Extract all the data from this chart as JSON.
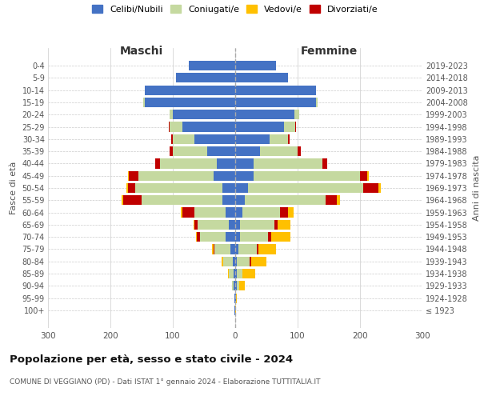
{
  "age_groups": [
    "100+",
    "95-99",
    "90-94",
    "85-89",
    "80-84",
    "75-79",
    "70-74",
    "65-69",
    "60-64",
    "55-59",
    "50-54",
    "45-49",
    "40-44",
    "35-39",
    "30-34",
    "25-29",
    "20-24",
    "15-19",
    "10-14",
    "5-9",
    "0-4"
  ],
  "birth_years": [
    "≤ 1923",
    "1924-1928",
    "1929-1933",
    "1934-1938",
    "1939-1943",
    "1944-1948",
    "1949-1953",
    "1954-1958",
    "1959-1963",
    "1964-1968",
    "1969-1973",
    "1974-1978",
    "1979-1983",
    "1984-1988",
    "1989-1993",
    "1994-1998",
    "1999-2003",
    "2004-2008",
    "2009-2013",
    "2014-2018",
    "2019-2023"
  ],
  "males": {
    "celibi": [
      1,
      1,
      2,
      2,
      4,
      8,
      16,
      10,
      15,
      20,
      20,
      35,
      30,
      45,
      65,
      85,
      100,
      145,
      145,
      95,
      75
    ],
    "coniugati": [
      0,
      0,
      3,
      8,
      15,
      25,
      40,
      50,
      50,
      130,
      140,
      120,
      90,
      55,
      35,
      20,
      5,
      2,
      0,
      0,
      0
    ],
    "vedovi": [
      0,
      0,
      0,
      2,
      3,
      2,
      2,
      2,
      2,
      2,
      2,
      2,
      0,
      0,
      0,
      0,
      0,
      0,
      0,
      0,
      0
    ],
    "divorziati": [
      0,
      0,
      0,
      0,
      0,
      2,
      5,
      5,
      20,
      30,
      12,
      15,
      8,
      5,
      2,
      2,
      0,
      0,
      0,
      0,
      0
    ]
  },
  "females": {
    "nubili": [
      0,
      1,
      2,
      2,
      3,
      5,
      8,
      8,
      12,
      15,
      20,
      30,
      30,
      40,
      55,
      78,
      95,
      130,
      130,
      85,
      65
    ],
    "coniugate": [
      0,
      0,
      5,
      10,
      20,
      30,
      45,
      55,
      60,
      130,
      185,
      170,
      110,
      60,
      30,
      18,
      8,
      2,
      0,
      0,
      0
    ],
    "vedove": [
      1,
      2,
      8,
      20,
      25,
      28,
      30,
      20,
      10,
      5,
      3,
      2,
      0,
      0,
      0,
      0,
      0,
      0,
      0,
      0,
      0
    ],
    "divorziate": [
      0,
      0,
      0,
      0,
      2,
      2,
      5,
      5,
      12,
      18,
      25,
      12,
      8,
      5,
      2,
      2,
      0,
      0,
      0,
      0,
      0
    ]
  },
  "colors": {
    "celibi": "#4472c4",
    "coniugati": "#c5d9a0",
    "vedovi": "#ffc000",
    "divorziati": "#c00000"
  },
  "legend_labels": [
    "Celibi/Nubili",
    "Coniugati/e",
    "Vedovi/e",
    "Divorziati/e"
  ],
  "title": "Popolazione per età, sesso e stato civile - 2024",
  "subtitle": "COMUNE DI VEGGIANO (PD) - Dati ISTAT 1° gennaio 2024 - Elaborazione TUTTITALIA.IT",
  "xlabel_left": "Maschi",
  "xlabel_right": "Femmine",
  "ylabel_left": "Fasce di età",
  "ylabel_right": "Anni di nascita",
  "xlim": 300,
  "background_color": "#ffffff",
  "grid_color": "#cccccc",
  "bar_height": 0.8
}
